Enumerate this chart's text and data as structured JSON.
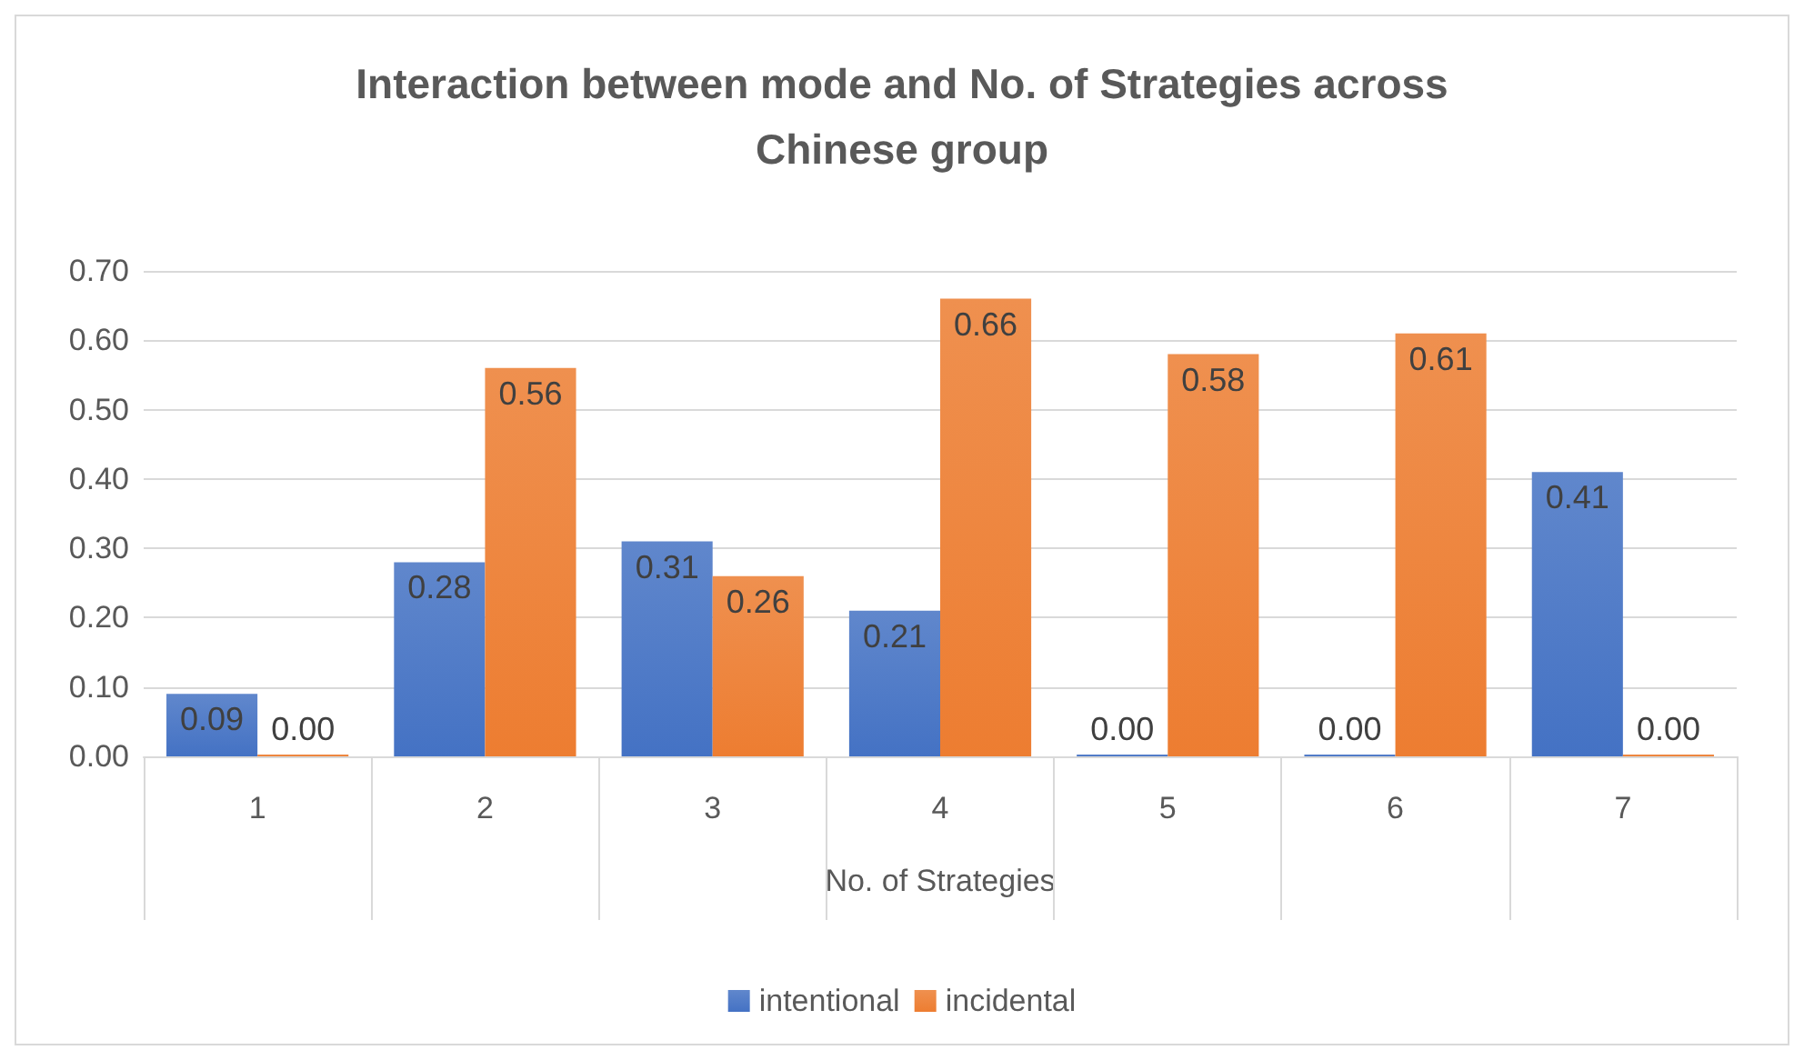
{
  "chart_data": {
    "type": "bar",
    "title": "Interaction between mode and No. of Strategies across\nChinese group",
    "xlabel": "No. of Strategies",
    "categories": [
      "1",
      "2",
      "3",
      "4",
      "5",
      "6",
      "7"
    ],
    "series": [
      {
        "name": "intentional",
        "color": "#4472c4",
        "values": [
          0.09,
          0.28,
          0.31,
          0.21,
          0.0,
          0.0,
          0.41
        ],
        "value_labels": [
          "0.09",
          "0.28",
          "0.31",
          "0.21",
          "0.00",
          "0.00",
          "0.41"
        ]
      },
      {
        "name": "incidental",
        "color": "#ed7d31",
        "values": [
          0.0,
          0.56,
          0.26,
          0.66,
          0.58,
          0.61,
          0.0
        ],
        "value_labels": [
          "0.00",
          "0.56",
          "0.26",
          "0.66",
          "0.58",
          "0.61",
          "0.00"
        ]
      }
    ],
    "ylim": [
      0,
      0.7
    ],
    "yticks": [
      {
        "value": 0,
        "label": "0.00"
      },
      {
        "value": 0.1,
        "label": "0.10"
      },
      {
        "value": 0.2,
        "label": "0.20"
      },
      {
        "value": 0.3,
        "label": "0.30"
      },
      {
        "value": 0.4,
        "label": "0.40"
      },
      {
        "value": 0.5,
        "label": "0.50"
      },
      {
        "value": 0.6,
        "label": "0.60"
      },
      {
        "value": 0.7,
        "label": "0.70"
      }
    ],
    "grid": "y",
    "legend": "bottom"
  }
}
